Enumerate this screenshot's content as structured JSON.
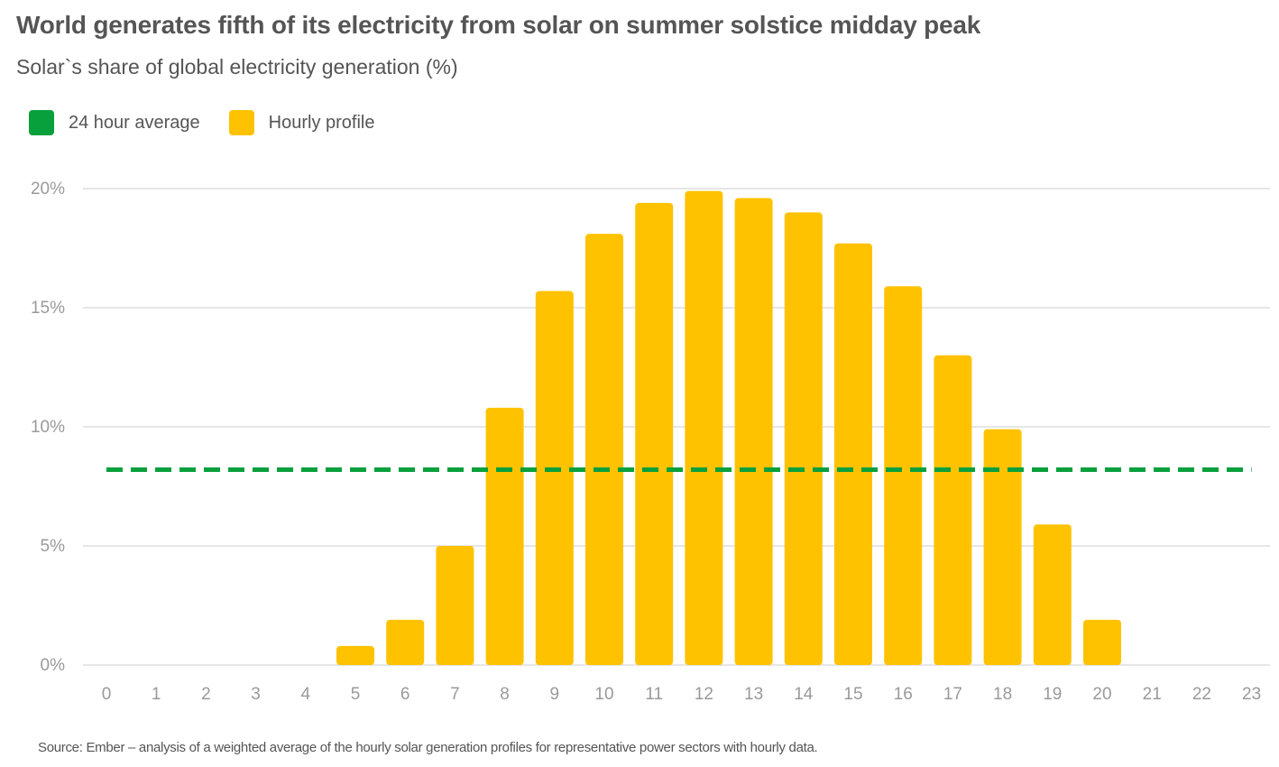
{
  "title": "World generates fifth of its electricity from solar on summer solstice midday peak",
  "subtitle": "Solar`s share of global electricity generation (%)",
  "source": "Source: Ember –  analysis of a weighted average of the hourly solar generation profiles for representative power sectors with hourly data.",
  "colors": {
    "bar": "#ffc200",
    "average": "#07a03c",
    "grid": "#cccccc",
    "text": "#555555",
    "tick": "#9a9a9a"
  },
  "legend": [
    {
      "label": "24 hour average",
      "color": "#07a03c"
    },
    {
      "label": "Hourly profile",
      "color": "#ffc200"
    }
  ],
  "chart_data": {
    "type": "bar",
    "title": "World generates fifth of its electricity from solar on summer solstice midday peak",
    "ylabel": "Solar`s share of global electricity generation (%)",
    "xlabel": "",
    "categories": [
      "0",
      "1",
      "2",
      "3",
      "4",
      "5",
      "6",
      "7",
      "8",
      "9",
      "10",
      "11",
      "12",
      "13",
      "14",
      "15",
      "16",
      "17",
      "18",
      "19",
      "20",
      "21",
      "22",
      "23"
    ],
    "series": [
      {
        "name": "Hourly profile",
        "type": "bar",
        "values": [
          0,
          0,
          0,
          0,
          0,
          0.8,
          1.9,
          5.0,
          10.8,
          15.7,
          18.1,
          19.4,
          19.9,
          19.6,
          19.0,
          17.7,
          15.9,
          13.0,
          9.9,
          5.9,
          1.9,
          0,
          0,
          0
        ]
      },
      {
        "name": "24 hour average",
        "type": "line",
        "style": "dashed",
        "value": 8.2
      }
    ],
    "ylim": [
      0,
      20
    ],
    "yticks": [
      0,
      5,
      10,
      15,
      20
    ],
    "ytick_labels": [
      "0%",
      "5%",
      "10%",
      "15%",
      "20%"
    ],
    "grid": true,
    "legend_position": "top-left"
  }
}
